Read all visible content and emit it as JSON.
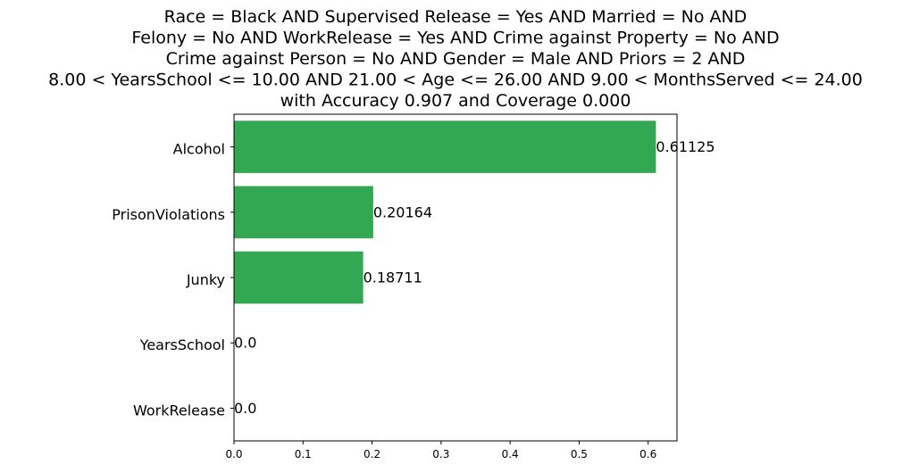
{
  "chart_data": {
    "type": "bar",
    "orientation": "horizontal",
    "title_lines": [
      "Race = Black AND Supervised Release = Yes AND Married = No AND",
      "Felony = No AND WorkRelease = Yes AND Crime against Property = No AND",
      "Crime against Person = No AND Gender = Male AND Priors = 2 AND",
      "8.00 < YearsSchool <= 10.00 AND 21.00 < Age <= 26.00 AND 9.00 < MonthsServed <= 24.00",
      "with Accuracy 0.907 and Coverage 0.000"
    ],
    "categories": [
      "Alcohol",
      "PrisonViolations",
      "Junky",
      "YearsSchool",
      "WorkRelease"
    ],
    "values": [
      0.61125,
      0.20164,
      0.18711,
      0.0,
      0.0
    ],
    "value_labels": [
      "0.61125",
      "0.20164",
      "0.18711",
      "0.0",
      "0.0"
    ],
    "x_ticks": [
      0.0,
      0.1,
      0.2,
      0.3,
      0.4,
      0.5,
      0.6
    ],
    "x_tick_labels": [
      "0.0",
      "0.1",
      "0.2",
      "0.3",
      "0.4",
      "0.5",
      "0.6"
    ],
    "xlim": [
      0,
      0.6418
    ],
    "xlabel": "",
    "ylabel": "",
    "bar_color": "#32a852",
    "grid": false
  }
}
